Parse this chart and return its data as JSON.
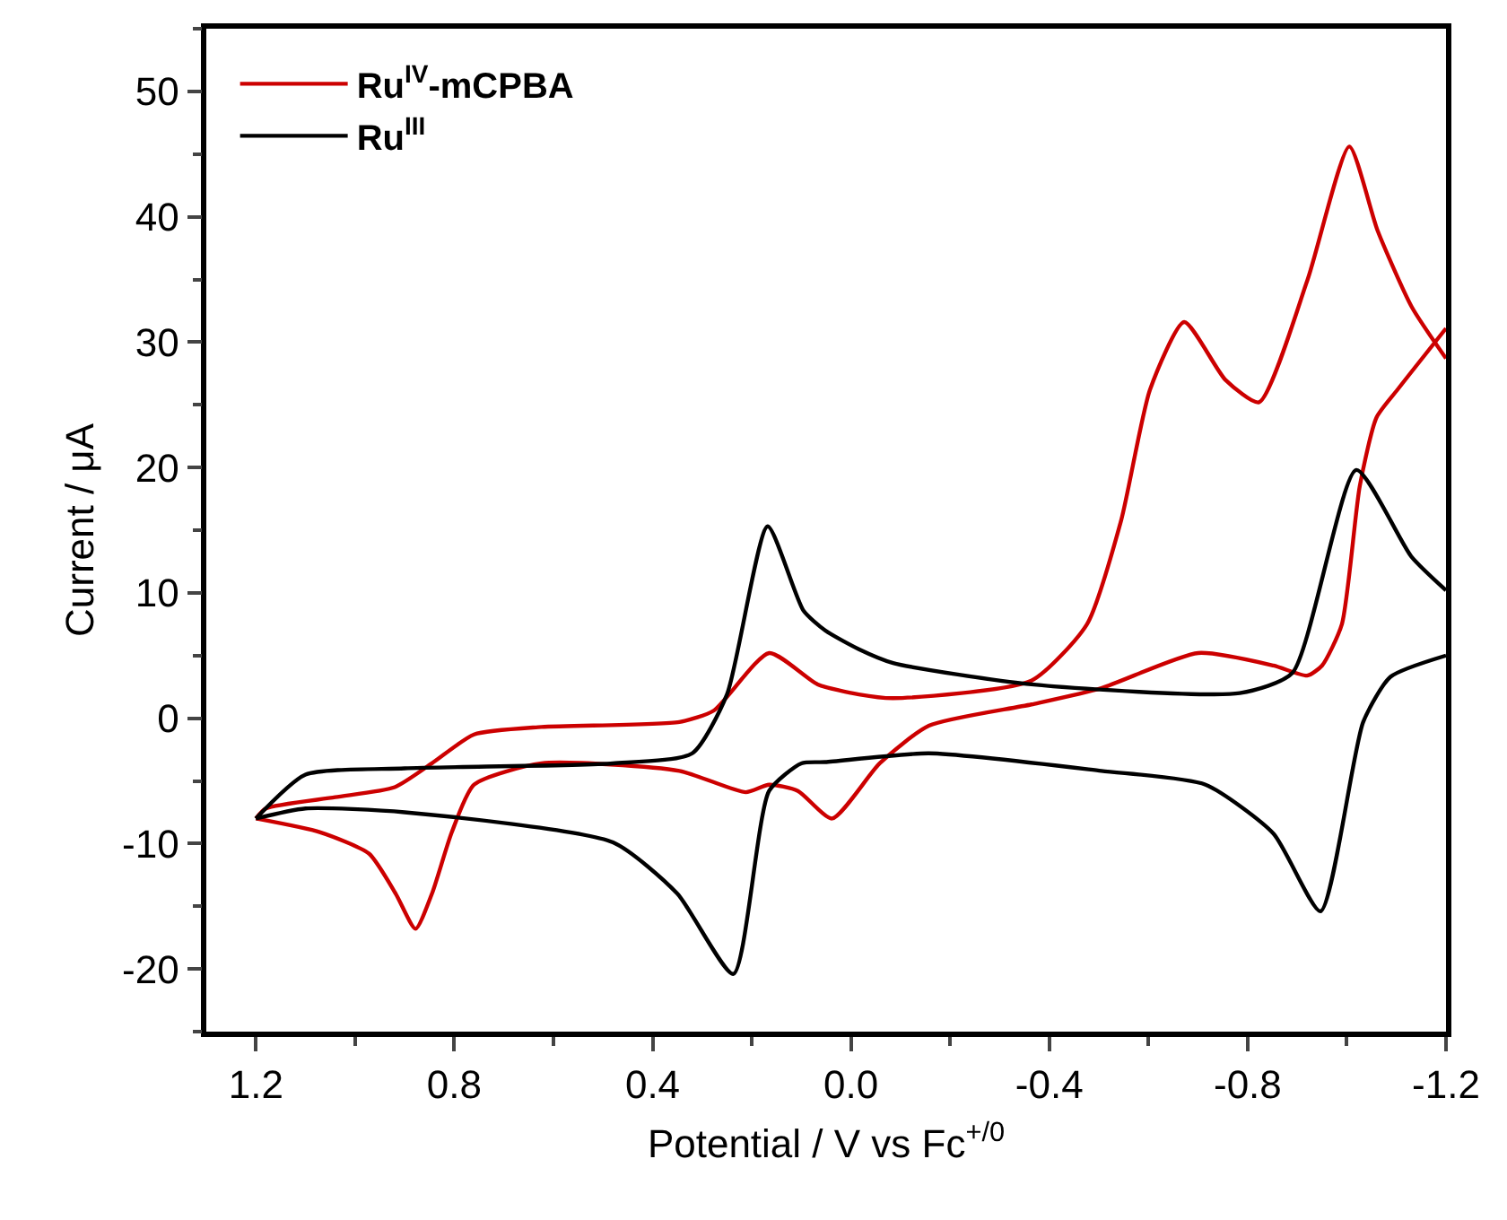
{
  "chart_data": {
    "type": "line",
    "xlabel": "Potential / V vs Fc$^{+/0}$",
    "ylabel": "Current / μA",
    "xlim": [
      1.3,
      -1.2
    ],
    "xticks": [
      {
        "value": 1.2,
        "label": "1.2"
      },
      {
        "value": 0.8,
        "label": "0.8"
      },
      {
        "value": 0.4,
        "label": "0.4"
      },
      {
        "value": 0,
        "label": "0.0"
      },
      {
        "value": -0.4,
        "label": "-0.4"
      },
      {
        "value": -0.8,
        "label": "-0.8"
      },
      {
        "value": -1.2,
        "label": "-1.2"
      }
    ],
    "ylim": [
      -25,
      55
    ],
    "yticks": [
      -20,
      -10,
      0,
      10,
      20,
      30,
      40,
      50
    ],
    "grid": false,
    "legend": "top left",
    "line_style": "solid",
    "marker": "none",
    "series": [
      {
        "name": "Ru$^{IV}$-mCPBA",
        "color": "#cc0000",
        "x": [
          1.2,
          1.18,
          1.04,
          0.92,
          0.845,
          0.76,
          0.624,
          0.346,
          0.277,
          0.165,
          0.067,
          -0.016,
          -0.085,
          -0.364,
          -0.476,
          -0.545,
          -0.603,
          -0.672,
          -0.755,
          -0.823,
          -0.921,
          -1.005,
          -1.062,
          -1.131,
          -1.2
        ],
        "values": [
          -8,
          -7.2,
          -6.3,
          -5.5,
          -3.6,
          -1.3,
          -0.7,
          -0.3,
          0.6,
          5.2,
          2.7,
          1.9,
          1.6,
          3.0,
          7.5,
          15.8,
          26.2,
          31.6,
          27.0,
          25.2,
          35,
          45.6,
          38.9,
          32.8,
          28.7
        ]
      },
      {
        "color": "#cc0000",
        "x": [
          -1.2,
          -1.102,
          -1.06,
          -1.026,
          -0.99,
          -0.95,
          -0.92,
          -0.852,
          -0.7,
          -0.505,
          -0.364,
          -0.157,
          -0.058,
          0.038,
          0.107,
          0.165,
          0.212,
          0.346,
          0.624,
          0.76,
          0.805,
          0.845,
          0.878,
          0.918,
          0.972,
          1.07,
          1.2
        ],
        "values": [
          31.1,
          26.2,
          24,
          18.5,
          7.5,
          4.2,
          3.4,
          4.2,
          5.2,
          2.4,
          1.1,
          -0.6,
          -3.6,
          -8.0,
          -5.8,
          -5.3,
          -5.9,
          -4.2,
          -3.6,
          -5.3,
          -9.1,
          -14,
          -16.8,
          -14,
          -10.8,
          -9.1,
          -8
        ]
      },
      {
        "name": "Ru$^{III}$",
        "color": "#000000",
        "x": [
          1.2,
          1.1,
          0.9,
          0.48,
          0.32,
          0.25,
          0.168,
          0.096,
          0.052,
          -0.016,
          -0.085,
          -0.364,
          -0.784,
          -0.89,
          -1.019,
          -1.13,
          -1.2
        ],
        "values": [
          -8,
          -4.5,
          -4.0,
          -3.6,
          -2.8,
          1.9,
          15.3,
          8.6,
          7,
          5.5,
          4.4,
          2.7,
          2.0,
          3.6,
          19.8,
          12.9,
          10.2
        ]
      },
      {
        "color": "#000000",
        "x": [
          -1.2,
          -1.088,
          -1.033,
          -0.947,
          -0.852,
          -0.715,
          -0.505,
          -0.157,
          0.052,
          0.1,
          0.165,
          0.237,
          0.35,
          0.48,
          0.9,
          1.1,
          1.2
        ],
        "values": [
          5.0,
          3.3,
          -0.3,
          -15.4,
          -9.2,
          -5.3,
          -4.2,
          -2.8,
          -3.5,
          -3.6,
          -5.8,
          -20.4,
          -14,
          -9.9,
          -7.5,
          -7.2,
          -8
        ]
      }
    ]
  }
}
